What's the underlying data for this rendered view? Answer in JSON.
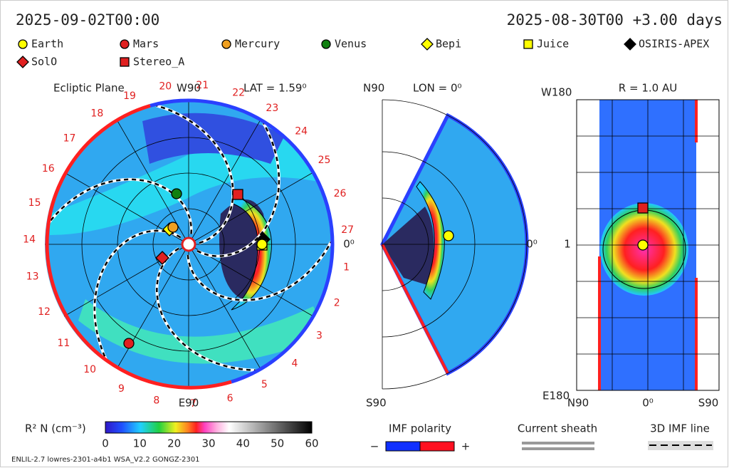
{
  "header": {
    "left": "2025-09-02T00:00",
    "right": "2025-08-30T00 +3.00 days"
  },
  "legend": [
    {
      "label": "Earth",
      "color": "#ffff00",
      "shape": "circle"
    },
    {
      "label": "Mars",
      "color": "#e02020",
      "shape": "circle"
    },
    {
      "label": "Mercury",
      "color": "#f0a020",
      "shape": "circle"
    },
    {
      "label": "Venus",
      "color": "#108010",
      "shape": "circle"
    },
    {
      "label": "Bepi",
      "color": "#ffff00",
      "shape": "diamond"
    },
    {
      "label": "Juice",
      "color": "#ffff00",
      "shape": "square"
    },
    {
      "label": "OSIRIS-APEX",
      "color": "#000000",
      "shape": "diamond"
    },
    {
      "label": "SolO",
      "color": "#e02020",
      "shape": "diamond"
    },
    {
      "label": "Stereo_A",
      "color": "#e02020",
      "shape": "square"
    }
  ],
  "ecliptic": {
    "title": "Ecliptic Plane",
    "top": "W90",
    "bottom": "E90",
    "right": "0⁰",
    "lat": "LAT = 1.59⁰",
    "longitudes": [
      "1",
      "2",
      "3",
      "4",
      "5",
      "6",
      "7",
      "8",
      "9",
      "10",
      "11",
      "12",
      "13",
      "14",
      "15",
      "16",
      "17",
      "18",
      "19",
      "20",
      "21",
      "22",
      "23",
      "24",
      "25",
      "26",
      "27"
    ]
  },
  "meridional": {
    "top": "N90",
    "bottom": "S90",
    "right": "0⁰",
    "lon": "LON = 0⁰"
  },
  "radial": {
    "title": "R = 1.0 AU",
    "top_left": "W180",
    "bottom_left": "E180",
    "left_mid": "1",
    "bottom_labels": [
      "N90",
      "0⁰",
      "S90"
    ]
  },
  "colorbar": {
    "label": "R² N (cm⁻³)",
    "ticks": [
      "0",
      "10",
      "20",
      "30",
      "40",
      "50",
      "60"
    ]
  },
  "imf": {
    "title": "IMF polarity",
    "minus": "−",
    "plus": "+"
  },
  "sheath": "Current sheath",
  "imf_line": "3D IMF line",
  "footer": "ENLIL-2.7 lowres-2301-a4b1 WSA_V2.2 GONGZ-2301"
}
